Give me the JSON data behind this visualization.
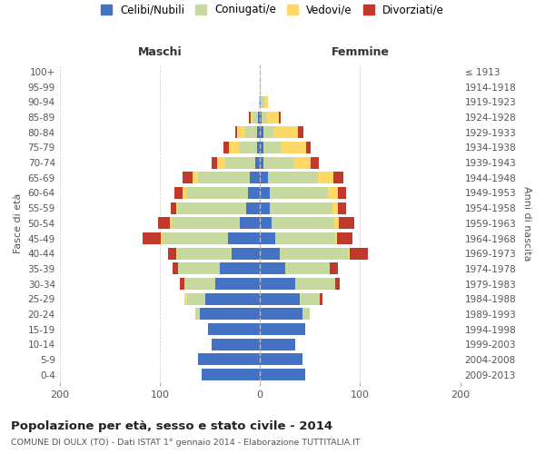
{
  "age_groups": [
    "0-4",
    "5-9",
    "10-14",
    "15-19",
    "20-24",
    "25-29",
    "30-34",
    "35-39",
    "40-44",
    "45-49",
    "50-54",
    "55-59",
    "60-64",
    "65-69",
    "70-74",
    "75-79",
    "80-84",
    "85-89",
    "90-94",
    "95-99",
    "100+"
  ],
  "birth_years": [
    "2009-2013",
    "2004-2008",
    "1999-2003",
    "1994-1998",
    "1989-1993",
    "1984-1988",
    "1979-1983",
    "1974-1978",
    "1969-1973",
    "1964-1968",
    "1959-1963",
    "1954-1958",
    "1949-1953",
    "1944-1948",
    "1939-1943",
    "1934-1938",
    "1929-1933",
    "1924-1928",
    "1919-1923",
    "1914-1918",
    "≤ 1913"
  ],
  "maschi": {
    "celibi": [
      58,
      62,
      48,
      52,
      60,
      55,
      45,
      40,
      28,
      32,
      20,
      14,
      12,
      10,
      5,
      3,
      3,
      2,
      0,
      0,
      0
    ],
    "coniugati": [
      0,
      0,
      0,
      0,
      5,
      18,
      30,
      42,
      55,
      65,
      68,
      68,
      62,
      52,
      30,
      18,
      12,
      5,
      1,
      0,
      0
    ],
    "vedovi": [
      0,
      0,
      0,
      0,
      0,
      2,
      0,
      0,
      1,
      2,
      2,
      2,
      3,
      5,
      8,
      10,
      8,
      2,
      0,
      0,
      0
    ],
    "divorziati": [
      0,
      0,
      0,
      0,
      0,
      0,
      5,
      5,
      8,
      18,
      12,
      5,
      8,
      10,
      5,
      5,
      2,
      2,
      0,
      0,
      0
    ]
  },
  "femmine": {
    "nubili": [
      45,
      42,
      35,
      45,
      42,
      40,
      35,
      25,
      20,
      15,
      12,
      10,
      10,
      8,
      3,
      3,
      3,
      2,
      1,
      0,
      0
    ],
    "coniugate": [
      0,
      0,
      0,
      0,
      8,
      20,
      40,
      45,
      68,
      60,
      62,
      62,
      58,
      50,
      30,
      18,
      10,
      5,
      3,
      1,
      0
    ],
    "vedove": [
      0,
      0,
      0,
      0,
      0,
      0,
      0,
      0,
      2,
      2,
      5,
      6,
      10,
      15,
      18,
      25,
      25,
      12,
      4,
      0,
      0
    ],
    "divorziate": [
      0,
      0,
      0,
      0,
      0,
      2,
      5,
      8,
      18,
      15,
      15,
      8,
      8,
      10,
      8,
      5,
      5,
      2,
      0,
      0,
      0
    ]
  },
  "colors": {
    "celibi_nubili": "#4472c4",
    "coniugati": "#c8d9a0",
    "vedovi": "#ffd966",
    "divorziati": "#c0392b"
  },
  "xlim": [
    -200,
    200
  ],
  "xticks": [
    -200,
    -100,
    0,
    100,
    200
  ],
  "xtick_labels": [
    "200",
    "100",
    "0",
    "100",
    "200"
  ],
  "title": "Popolazione per età, sesso e stato civile - 2014",
  "subtitle": "COMUNE DI OULX (TO) - Dati ISTAT 1° gennaio 2014 - Elaborazione TUTTITALIA.IT",
  "ylabel_left": "Fasce di età",
  "ylabel_right": "Anni di nascita",
  "label_maschi": "Maschi",
  "label_femmine": "Femmine",
  "legend_labels": [
    "Celibi/Nubili",
    "Coniugati/e",
    "Vedovi/e",
    "Divorziati/e"
  ],
  "background_color": "#ffffff",
  "grid_color": "#cccccc"
}
